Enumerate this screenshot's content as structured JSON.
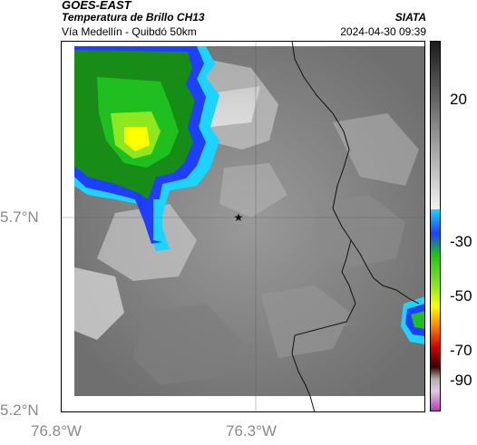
{
  "header": {
    "satellite": "GOES-EAST",
    "product": "Temperatura de Brillo CH13",
    "region": "Vía Medellín - Quibdó 50km",
    "organization": "SIATA",
    "datetime": "2024-04-30 09:39"
  },
  "map": {
    "lat_ticks": [
      "5.7°N",
      "5.2°N"
    ],
    "lon_ticks": [
      "76.8°W",
      "76.3°W"
    ],
    "marker": "star-marker"
  },
  "colorbar": {
    "labels": [
      "20",
      "-30",
      "-50",
      "-70",
      "-90"
    ],
    "colors": {
      "gray_top": "#1a1a1a",
      "gray_bottom": "#f2f2f2",
      "cyan": "#1fd3ff",
      "blue": "#1f3fff",
      "green": "#1fbf1f",
      "yellow": "#ffff00",
      "orange": "#ff7f00",
      "red": "#d40000",
      "dark": "#3a0000",
      "magenta": "#b03ab0"
    }
  }
}
